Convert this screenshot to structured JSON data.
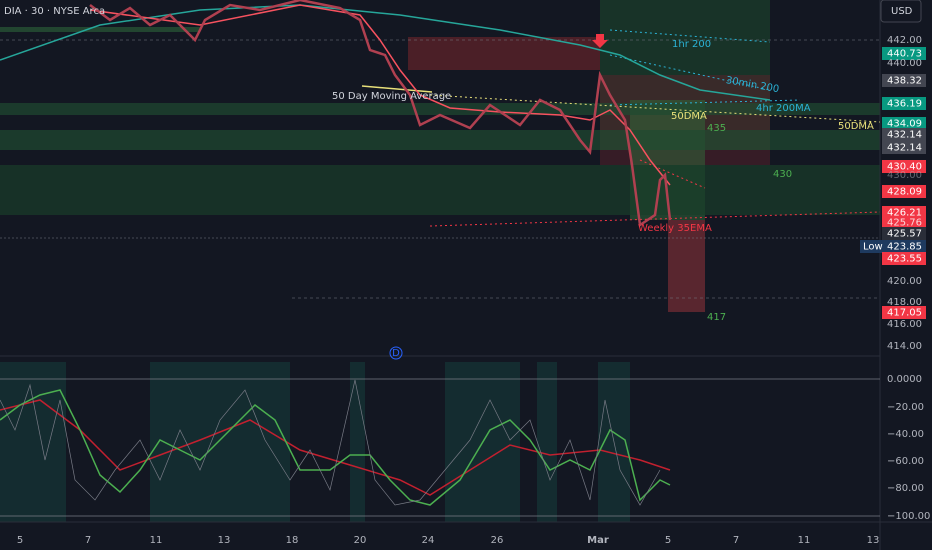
{
  "header": {
    "symbol": "DIA · 30 · NYSE Arca",
    "currency": "USD",
    "event_marker": "D"
  },
  "price_axis": [
    "442.00",
    "440.73",
    "440.00",
    "438.32",
    "436.19",
    "434.09",
    "432.14",
    "432.14",
    "430.40",
    "430.00",
    "428.09",
    "426.21",
    "425.76",
    "425.57",
    "423.85",
    "423.55",
    "420.00",
    "418.00",
    "417.05",
    "416.00",
    "414.00"
  ],
  "low_label": "Low",
  "indicator_axis": [
    "0.0000",
    "−20.00",
    "−40.00",
    "−60.00",
    "−80.00",
    "−100.00"
  ],
  "time_axis": [
    "5",
    "7",
    "11",
    "13",
    "18",
    "20",
    "24",
    "26",
    "Mar",
    "5",
    "7",
    "11",
    "13"
  ],
  "annotations": {
    "ma50_label": "50 Day Moving Average",
    "hr1_200": "1hr 200",
    "min30_200": "30min 200",
    "hr4_200": "4hr 200MA",
    "dma50_a": "50DMA",
    "dma50_b": "50DMA",
    "level_435": "435",
    "level_430": "430",
    "level_417": "417",
    "weekly_ema": "Weekly 35EMA"
  }
}
